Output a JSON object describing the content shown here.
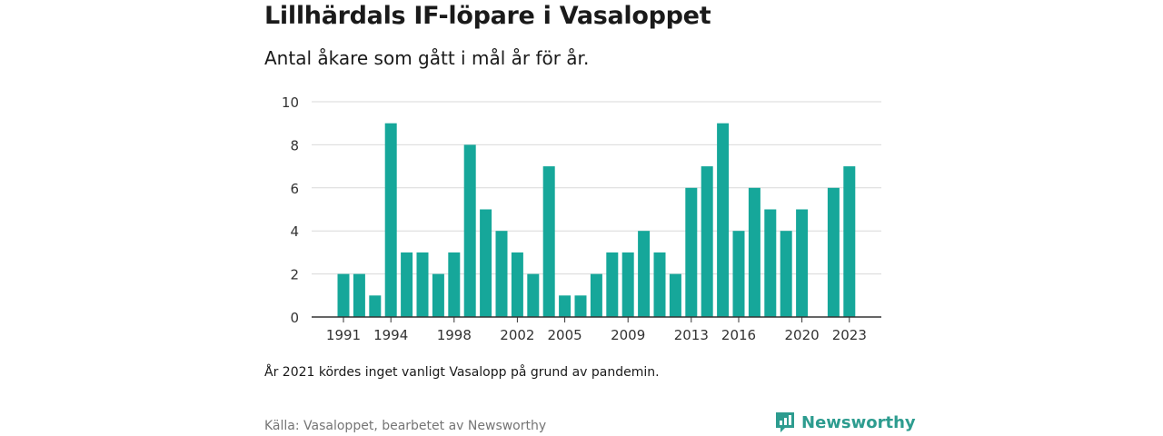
{
  "title": "Lillhärdals IF-löpare i Vasaloppet",
  "subtitle": "Antal åkare som gått i mål år för år.",
  "note": "År 2021 kördes inget vanligt Vasalopp på grund av pandemin.",
  "source": "Källa: Vasaloppet, bearbetet av Newsworthy",
  "brand": {
    "name": "Newsworthy",
    "icon": "newsworthy-logo-icon",
    "color": "#2d9c8f"
  },
  "colors": {
    "bar": "#16a79a",
    "grid": "#d9d9d9",
    "axis": "#333333"
  },
  "chart_data": {
    "type": "bar",
    "x": [
      1991,
      1992,
      1993,
      1994,
      1995,
      1996,
      1997,
      1998,
      1999,
      2000,
      2001,
      2002,
      2003,
      2004,
      2005,
      2006,
      2007,
      2008,
      2009,
      2010,
      2011,
      2012,
      2013,
      2014,
      2015,
      2016,
      2017,
      2018,
      2019,
      2020,
      2021,
      2022,
      2023
    ],
    "values": [
      2,
      2,
      1,
      9,
      3,
      3,
      2,
      3,
      8,
      5,
      4,
      3,
      2,
      7,
      1,
      1,
      2,
      3,
      3,
      4,
      3,
      2,
      6,
      7,
      9,
      4,
      6,
      5,
      4,
      5,
      null,
      6,
      7
    ],
    "x_ticks": [
      "1991",
      "1994",
      "1998",
      "2002",
      "2005",
      "2009",
      "2013",
      "2016",
      "2020",
      "2023"
    ],
    "y_ticks": [
      "0",
      "2",
      "4",
      "6",
      "8",
      "10"
    ],
    "ylim": [
      0,
      10
    ],
    "grid": true,
    "legend": "none",
    "xlabel": "",
    "ylabel": ""
  }
}
